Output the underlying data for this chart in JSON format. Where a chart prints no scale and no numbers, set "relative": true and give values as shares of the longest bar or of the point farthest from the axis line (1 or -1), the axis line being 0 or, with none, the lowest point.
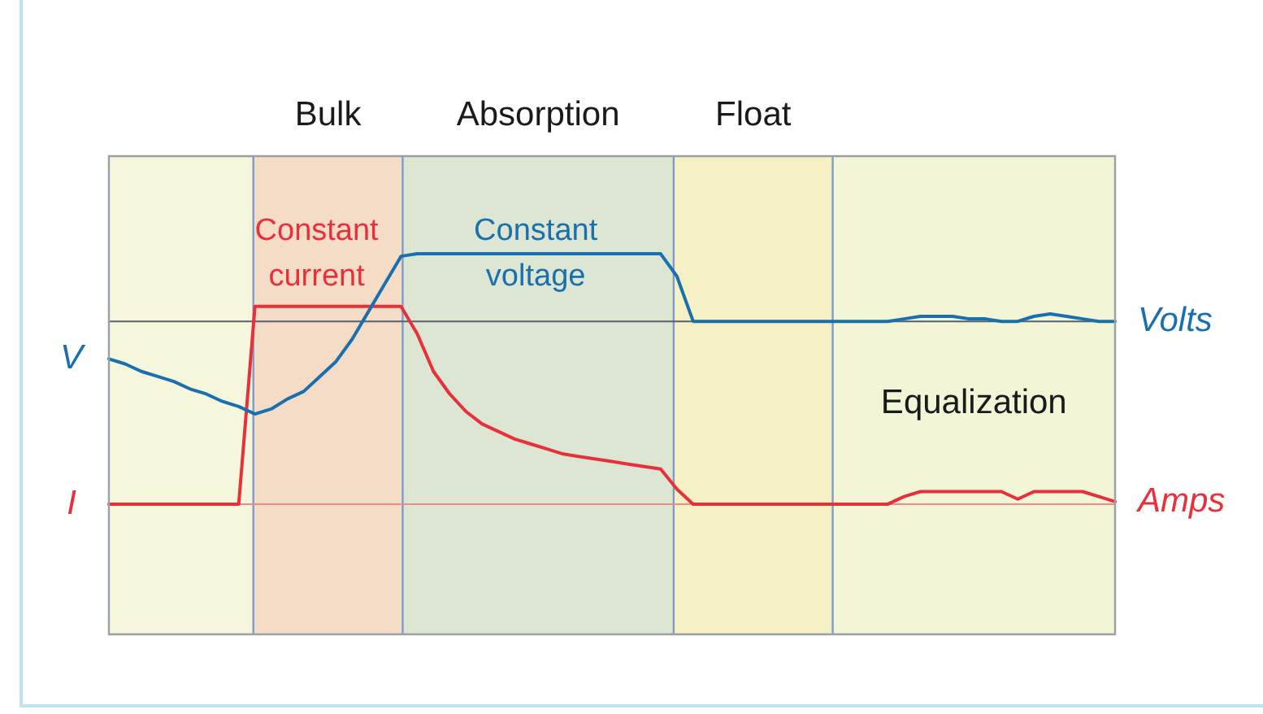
{
  "chart_data": {
    "type": "line",
    "relative": true,
    "categories": [
      null,
      null,
      null,
      null,
      null,
      null,
      null,
      null,
      null,
      null,
      null,
      null,
      null,
      null,
      null,
      null,
      null,
      null,
      null,
      null,
      null,
      null,
      null,
      null,
      null,
      null,
      null,
      null,
      null,
      null,
      null,
      null,
      null,
      null,
      null,
      null,
      null,
      null,
      null,
      null,
      null,
      null,
      null,
      null,
      null,
      null,
      null,
      null,
      null,
      null,
      null,
      null,
      null,
      null,
      null,
      null,
      null,
      null,
      null,
      null,
      null,
      null,
      null
    ],
    "series": [
      {
        "name": "Volts",
        "color": "#1a6faf",
        "values": [
          0.58,
          0.56,
          0.53,
          0.51,
          0.49,
          0.46,
          0.44,
          0.41,
          0.39,
          0.36,
          0.38,
          0.42,
          0.45,
          0.51,
          0.57,
          0.66,
          0.77,
          0.88,
          0.99,
          1,
          1,
          1,
          1,
          1,
          1,
          1,
          1,
          1,
          1,
          1,
          1,
          1,
          1,
          1,
          1,
          0.91,
          0.73,
          0.73,
          0.73,
          0.73,
          0.73,
          0.73,
          0.73,
          0.73,
          0.73,
          0.73,
          0.73,
          0.73,
          0.73,
          0.74,
          0.75,
          0.75,
          0.75,
          0.74,
          0.74,
          0.73,
          0.73,
          0.75,
          0.76,
          0.75,
          0.74,
          0.73,
          0.73
        ]
      },
      {
        "name": "Amps",
        "color": "#e8303a",
        "values": [
          0,
          0,
          0,
          0,
          0,
          0,
          0,
          0,
          0,
          0.79,
          0.79,
          0.79,
          0.79,
          0.79,
          0.79,
          0.79,
          0.79,
          0.79,
          0.79,
          0.68,
          0.53,
          0.44,
          0.37,
          0.32,
          0.29,
          0.26,
          0.24,
          0.22,
          0.2,
          0.19,
          0.18,
          0.17,
          0.16,
          0.15,
          0.14,
          0.06,
          0,
          0,
          0,
          0,
          0,
          0,
          0,
          0,
          0,
          0,
          0,
          0,
          0,
          0.03,
          0.05,
          0.05,
          0.05,
          0.05,
          0.05,
          0.05,
          0.02,
          0.05,
          0.05,
          0.05,
          0.05,
          0.03,
          0.01
        ]
      }
    ],
    "grid": true,
    "ref_lines": [
      {
        "axis": "y",
        "value": 0.73,
        "color": "#556070"
      },
      {
        "axis": "y",
        "value": 0,
        "color": "#f08a8a"
      }
    ],
    "annotations": [
      "Bulk",
      "Absorption",
      "Float",
      "Equalization",
      "V",
      "I",
      "Constant current",
      "Constant voltage"
    ]
  }
}
